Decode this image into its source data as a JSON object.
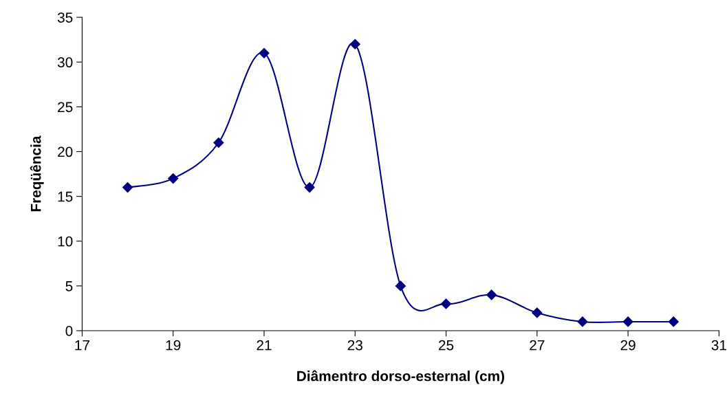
{
  "chart_data": {
    "type": "line",
    "xlabel": "Diâmentro dorso-esternal (cm)",
    "ylabel": "Freqüência",
    "x": [
      18,
      19,
      20,
      21,
      22,
      23,
      24,
      25,
      26,
      27,
      28,
      29,
      30
    ],
    "series": [
      {
        "color": "#000080",
        "values": [
          16,
          17,
          21,
          31,
          16,
          32,
          5,
          3,
          4,
          2,
          1,
          1,
          1
        ]
      }
    ],
    "xlim": [
      17,
      31
    ],
    "xticks": [
      17,
      19,
      21,
      23,
      25,
      27,
      29,
      31
    ],
    "ylim": [
      0,
      35
    ],
    "yticks": [
      0,
      5,
      10,
      15,
      20,
      25,
      30,
      35
    ],
    "marker": "diamond",
    "line_style": "solid",
    "grid": false,
    "legend": false
  }
}
